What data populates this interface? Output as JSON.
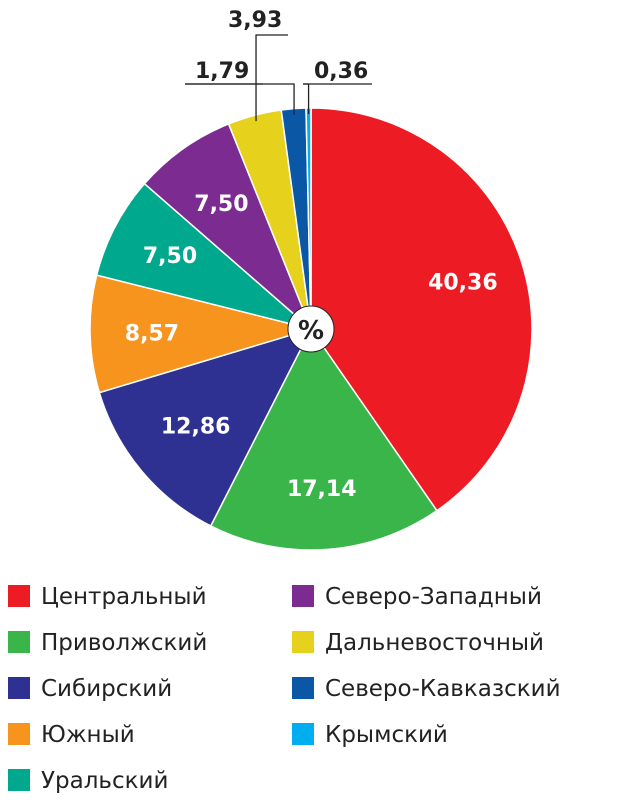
{
  "chart_data": {
    "type": "pie",
    "unit": "%",
    "slices": [
      {
        "name": "Центральный",
        "value": 40.36,
        "label": "40,36",
        "color": "#ed1c24"
      },
      {
        "name": "Приволжский",
        "value": 17.14,
        "label": "17,14",
        "color": "#3ab54a"
      },
      {
        "name": "Сибирский",
        "value": 12.86,
        "label": "12,86",
        "color": "#2e3192"
      },
      {
        "name": "Южный",
        "value": 8.57,
        "label": "8,57",
        "color": "#f7941d"
      },
      {
        "name": "Уральский",
        "value": 7.5,
        "label": "7,50",
        "color": "#00a88e"
      },
      {
        "name": "Северо-Западный",
        "value": 7.5,
        "label": "7,50",
        "color": "#7c2c91"
      },
      {
        "name": "Дальневосточный",
        "value": 3.93,
        "label": "3,93",
        "color": "#e6d11c"
      },
      {
        "name": "Северо-Кавказский",
        "value": 1.79,
        "label": "1,79",
        "color": "#0a57a5"
      },
      {
        "name": "Крымский",
        "value": 0.36,
        "label": "0,36",
        "color": "#00aeef"
      }
    ],
    "legend_position": "bottom"
  }
}
